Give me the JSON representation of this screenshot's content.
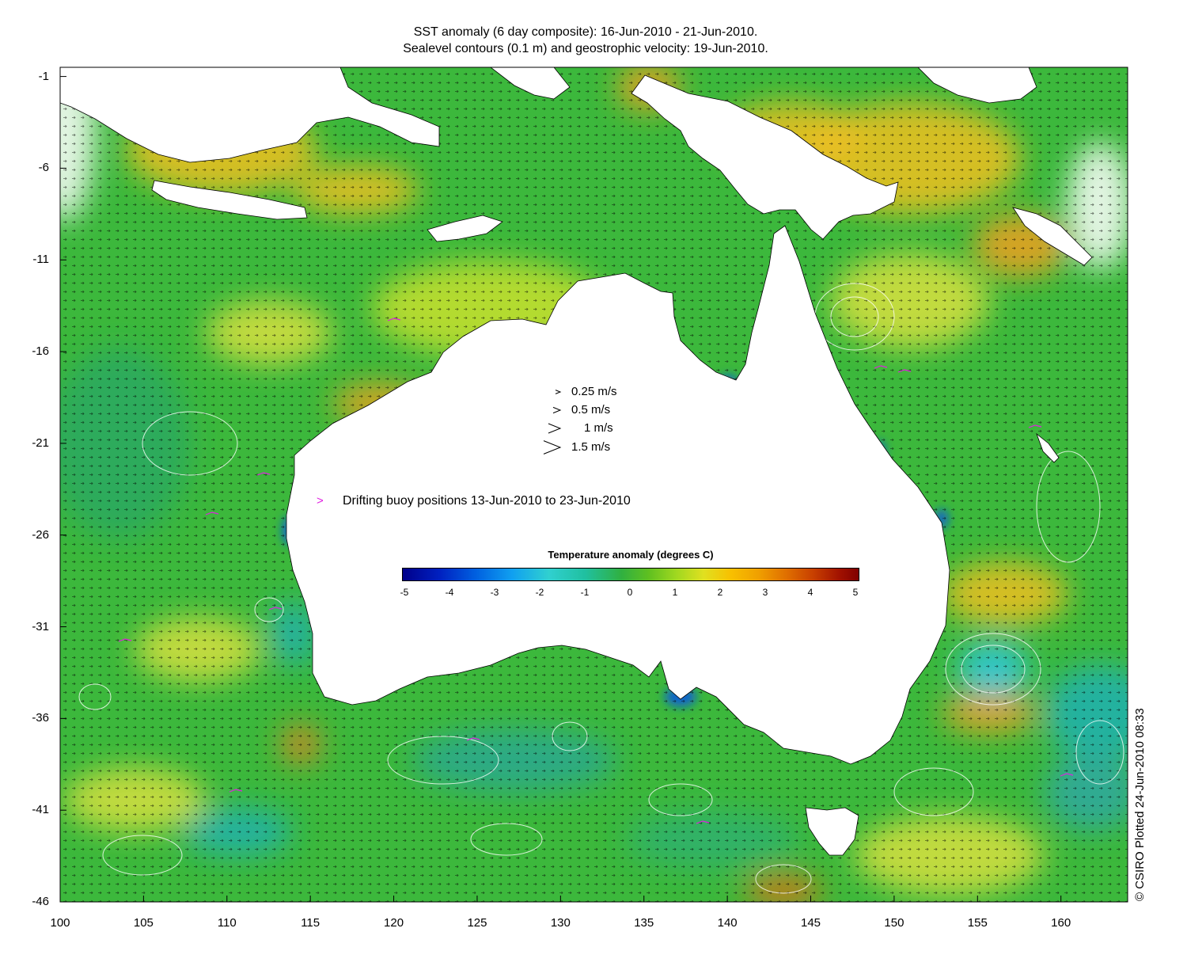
{
  "title": {
    "line1": "SST anomaly (6 day composite): 16-Jun-2010 - 21-Jun-2010.",
    "line2": "Sealevel contours (0.1 m) and geostrophic velocity: 19-Jun-2010."
  },
  "axes": {
    "y_ticks": [
      "-1",
      "-6",
      "-11",
      "-16",
      "-21",
      "-26",
      "-31",
      "-36",
      "-41",
      "-46"
    ],
    "x_ticks": [
      "100",
      "105",
      "110",
      "115",
      "120",
      "125",
      "130",
      "135",
      "140",
      "145",
      "150",
      "155",
      "160"
    ],
    "lon_range": [
      100,
      164
    ],
    "lat_range": [
      -46,
      -0.5
    ]
  },
  "velocity_legend": {
    "items": [
      {
        "label": "0.25 m/s",
        "speed": 0.25
      },
      {
        "label": "0.5 m/s",
        "speed": 0.5
      },
      {
        "label": "1 m/s",
        "speed": 1
      },
      {
        "label": "1.5 m/s",
        "speed": 1.5
      }
    ]
  },
  "buoy_legend": {
    "marker": ">",
    "label": "Drifting buoy positions 13-Jun-2010 to 23-Jun-2010",
    "color": "#e020e0"
  },
  "colorbar": {
    "title": "Temperature anomaly (degrees C)",
    "ticks": [
      "-5",
      "-4",
      "-3",
      "-2",
      "-1",
      "0",
      "1",
      "2",
      "3",
      "4",
      "5"
    ],
    "range": [
      -5,
      5
    ]
  },
  "copyright": "© CSIRO Plotted 24-Jun-2010 08:33",
  "colors": {
    "land": "#ffffff",
    "ocean_base": "#3cb83c",
    "warm": "#f0c020",
    "cool": "#20b0b0",
    "contours": "#ffffff",
    "vectors": "#000000"
  }
}
